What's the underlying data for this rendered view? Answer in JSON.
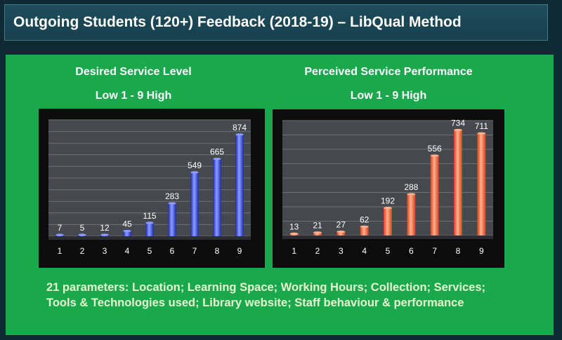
{
  "header": {
    "title": "Outgoing Students (120+) Feedback (2018-19) – LibQual Method"
  },
  "left": {
    "heading": "Desired Service Level",
    "scale": "Low 1 - 9 High"
  },
  "right": {
    "heading": "Perceived Service Performance",
    "scale": "Low 1 - 9 High"
  },
  "footer": {
    "line1": "21 parameters: Location; Learning Space; Working Hours; Collection; Services;",
    "line2": "Tools & Technologies used; Library website; Staff behaviour & performance"
  },
  "colors": {
    "background": "#0f2a33",
    "panel": "#1aa84d",
    "desired_bar": "#2d44d8",
    "perceived_bar": "#f0562a"
  },
  "chart_data": [
    {
      "type": "bar",
      "title": "Desired Service Level",
      "subtitle": "Low 1 - 9 High",
      "categories": [
        "1",
        "2",
        "3",
        "4",
        "5",
        "6",
        "7",
        "8",
        "9"
      ],
      "values": [
        7,
        5,
        12,
        45,
        115,
        283,
        549,
        665,
        874
      ],
      "ylim": [
        0,
        1000
      ],
      "grid": true,
      "data_labels": true
    },
    {
      "type": "bar",
      "title": "Perceived Service Performance",
      "subtitle": "Low 1 - 9 High",
      "categories": [
        "1",
        "2",
        "3",
        "4",
        "5",
        "6",
        "7",
        "8",
        "9"
      ],
      "values": [
        13,
        21,
        27,
        62,
        192,
        288,
        556,
        734,
        711
      ],
      "ylim": [
        0,
        800
      ],
      "grid": true,
      "data_labels": true
    }
  ]
}
